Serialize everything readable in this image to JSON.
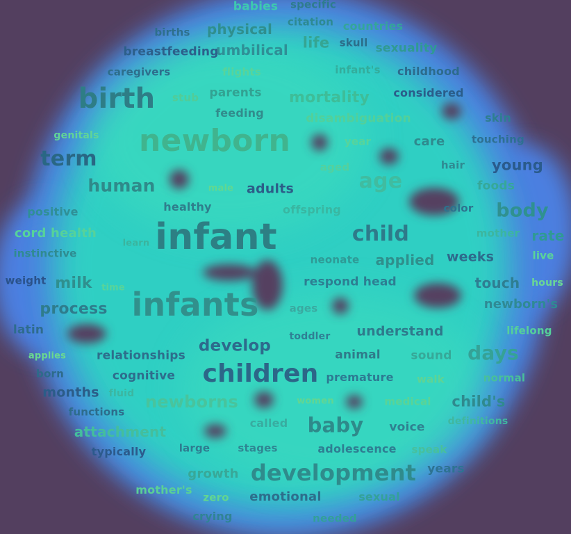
{
  "colors": {
    "background": "#533f5f",
    "halo": "#4c7fe0",
    "cloud": "#2fd4c2",
    "hole": "#553f60"
  },
  "words": [
    {
      "text": "babies",
      "color": "#3ec9b0",
      "size": 17
    },
    {
      "text": "specific",
      "color": "#2e7c8e",
      "size": 15
    },
    {
      "text": "births",
      "color": "#2d6f8c",
      "size": 15
    },
    {
      "text": "physical",
      "color": "#2f8f8e",
      "size": 20
    },
    {
      "text": "citation",
      "color": "#2d8a92",
      "size": 15
    },
    {
      "text": "countries",
      "color": "#34a59a",
      "size": 16
    },
    {
      "text": "breastfeeding",
      "color": "#2c5f8a",
      "size": 17
    },
    {
      "text": "umbilical",
      "color": "#2f8f96",
      "size": 20
    },
    {
      "text": "life",
      "color": "#35a592",
      "size": 21
    },
    {
      "text": "skull",
      "color": "#2b6e8a",
      "size": 15
    },
    {
      "text": "sexuality",
      "color": "#2f9a92",
      "size": 17
    },
    {
      "text": "caregivers",
      "color": "#2d6e8c",
      "size": 15
    },
    {
      "text": "flights",
      "color": "#58d49a",
      "size": 15
    },
    {
      "text": "infant's",
      "color": "#33ad9c",
      "size": 15
    },
    {
      "text": "childhood",
      "color": "#2c6b8c",
      "size": 16
    },
    {
      "text": "birth",
      "color": "#2e7d86",
      "size": 40
    },
    {
      "text": "stub",
      "color": "#52cc98",
      "size": 15
    },
    {
      "text": "parents",
      "color": "#32a292",
      "size": 17
    },
    {
      "text": "mortality",
      "color": "#3ebd98",
      "size": 22
    },
    {
      "text": "considered",
      "color": "#2a5d8a",
      "size": 16
    },
    {
      "text": "feeding",
      "color": "#318c8c",
      "size": 16
    },
    {
      "text": "disambiguation",
      "color": "#52d09a",
      "size": 17
    },
    {
      "text": "skin",
      "color": "#2e7e90",
      "size": 16
    },
    {
      "text": "genitals",
      "color": "#62d596",
      "size": 14
    },
    {
      "text": "newborn",
      "color": "#40b48e",
      "size": 44
    },
    {
      "text": "year",
      "color": "#58d49a",
      "size": 15
    },
    {
      "text": "care",
      "color": "#2f8a8e",
      "size": 18
    },
    {
      "text": "touching",
      "color": "#2d7092",
      "size": 15
    },
    {
      "text": "term",
      "color": "#296784",
      "size": 30
    },
    {
      "text": "aged",
      "color": "#55d09c",
      "size": 15
    },
    {
      "text": "hair",
      "color": "#2f8a92",
      "size": 15
    },
    {
      "text": "young",
      "color": "#2a5b8c",
      "size": 21
    },
    {
      "text": "human",
      "color": "#2f8a8a",
      "size": 25
    },
    {
      "text": "male",
      "color": "#62d890",
      "size": 13
    },
    {
      "text": "adults",
      "color": "#2c5e88",
      "size": 19
    },
    {
      "text": "age",
      "color": "#40bca0",
      "size": 30
    },
    {
      "text": "foods",
      "color": "#35a898",
      "size": 17
    },
    {
      "text": "positive",
      "color": "#2f8f96",
      "size": 16
    },
    {
      "text": "healthy",
      "color": "#2f7e8c",
      "size": 16
    },
    {
      "text": "offspring",
      "color": "#39b7a2",
      "size": 16
    },
    {
      "text": "color",
      "color": "#2d728e",
      "size": 15
    },
    {
      "text": "body",
      "color": "#2f9190",
      "size": 27
    },
    {
      "text": "cord health",
      "color": "#56d29a",
      "size": 18
    },
    {
      "text": "learn",
      "color": "#3ab49e",
      "size": 13
    },
    {
      "text": "infant",
      "color": "#2d7f84",
      "size": 52
    },
    {
      "text": "child",
      "color": "#2e7a8a",
      "size": 30
    },
    {
      "text": "mother",
      "color": "#3cb69e",
      "size": 15
    },
    {
      "text": "rate",
      "color": "#2f9a94",
      "size": 20
    },
    {
      "text": "instinctive",
      "color": "#2f8b90",
      "size": 15
    },
    {
      "text": "neonate",
      "color": "#2f9a96",
      "size": 15
    },
    {
      "text": "applied",
      "color": "#2f8f8c",
      "size": 20
    },
    {
      "text": "weeks",
      "color": "#2e6a8c",
      "size": 19
    },
    {
      "text": "live",
      "color": "#5ad498",
      "size": 15
    },
    {
      "text": "weight",
      "color": "#2a528a",
      "size": 15
    },
    {
      "text": "milk",
      "color": "#2f8f8e",
      "size": 22
    },
    {
      "text": "time",
      "color": "#58d49a",
      "size": 13
    },
    {
      "text": "respond head",
      "color": "#2d7e92",
      "size": 17
    },
    {
      "text": "touch",
      "color": "#2e7e92",
      "size": 20
    },
    {
      "text": "hours",
      "color": "#6bd894",
      "size": 14
    },
    {
      "text": "process",
      "color": "#2e7c8c",
      "size": 22
    },
    {
      "text": "infants",
      "color": "#31908c",
      "size": 46
    },
    {
      "text": "ages",
      "color": "#3aa9a0",
      "size": 15
    },
    {
      "text": "newborn's",
      "color": "#2f8a94",
      "size": 18
    },
    {
      "text": "latin",
      "color": "#2e6c8e",
      "size": 17
    },
    {
      "text": "toddler",
      "color": "#2f7f94",
      "size": 14
    },
    {
      "text": "understand",
      "color": "#2e7a8c",
      "size": 19
    },
    {
      "text": "lifelong",
      "color": "#55d09a",
      "size": 15
    },
    {
      "text": "applies",
      "color": "#6ad990",
      "size": 13
    },
    {
      "text": "relationships",
      "color": "#2d6e8c",
      "size": 17
    },
    {
      "text": "develop",
      "color": "#2d6a8c",
      "size": 23
    },
    {
      "text": "animal",
      "color": "#2f7a8a",
      "size": 17
    },
    {
      "text": "sound",
      "color": "#36a898",
      "size": 17
    },
    {
      "text": "days",
      "color": "#35a296",
      "size": 28
    },
    {
      "text": "born",
      "color": "#2d6b8a",
      "size": 15
    },
    {
      "text": "cognitive",
      "color": "#2e6c8c",
      "size": 17
    },
    {
      "text": "children",
      "color": "#2c6688",
      "size": 36
    },
    {
      "text": "premature",
      "color": "#2d7a92",
      "size": 16
    },
    {
      "text": "walk",
      "color": "#5fd494",
      "size": 15
    },
    {
      "text": "normal",
      "color": "#48c09a",
      "size": 15
    },
    {
      "text": "months",
      "color": "#2b5c88",
      "size": 19
    },
    {
      "text": "fluid",
      "color": "#3cb6a0",
      "size": 14
    },
    {
      "text": "newborns",
      "color": "#48c49c",
      "size": 24
    },
    {
      "text": "women",
      "color": "#62d692",
      "size": 13
    },
    {
      "text": "medical",
      "color": "#5ad496",
      "size": 15
    },
    {
      "text": "child's",
      "color": "#2f8a8e",
      "size": 21
    },
    {
      "text": "functions",
      "color": "#2d6c8c",
      "size": 15
    },
    {
      "text": "called",
      "color": "#38aca0",
      "size": 16
    },
    {
      "text": "baby",
      "color": "#2e8a8a",
      "size": 29
    },
    {
      "text": "voice",
      "color": "#2f8090",
      "size": 17
    },
    {
      "text": "definitions",
      "color": "#40b8a0",
      "size": 14
    },
    {
      "text": "attachment",
      "color": "#44be9c",
      "size": 20
    },
    {
      "text": "typically",
      "color": "#2c5a8c",
      "size": 16
    },
    {
      "text": "large",
      "color": "#2e7c90",
      "size": 15
    },
    {
      "text": "stages",
      "color": "#2f8592",
      "size": 15
    },
    {
      "text": "adolescence",
      "color": "#2e7e92",
      "size": 16
    },
    {
      "text": "speak",
      "color": "#48c09c",
      "size": 15
    },
    {
      "text": "growth",
      "color": "#38a898",
      "size": 18
    },
    {
      "text": "development",
      "color": "#2f8b8c",
      "size": 32
    },
    {
      "text": "years",
      "color": "#2d7392",
      "size": 17
    },
    {
      "text": "mother's",
      "color": "#5ad096",
      "size": 16
    },
    {
      "text": "zero",
      "color": "#62d690",
      "size": 15
    },
    {
      "text": "emotional",
      "color": "#2d6e8c",
      "size": 18
    },
    {
      "text": "sexual",
      "color": "#33a298",
      "size": 16
    },
    {
      "text": "crying",
      "color": "#2f8494",
      "size": 16
    },
    {
      "text": "needed",
      "color": "#32a098",
      "size": 15
    }
  ]
}
